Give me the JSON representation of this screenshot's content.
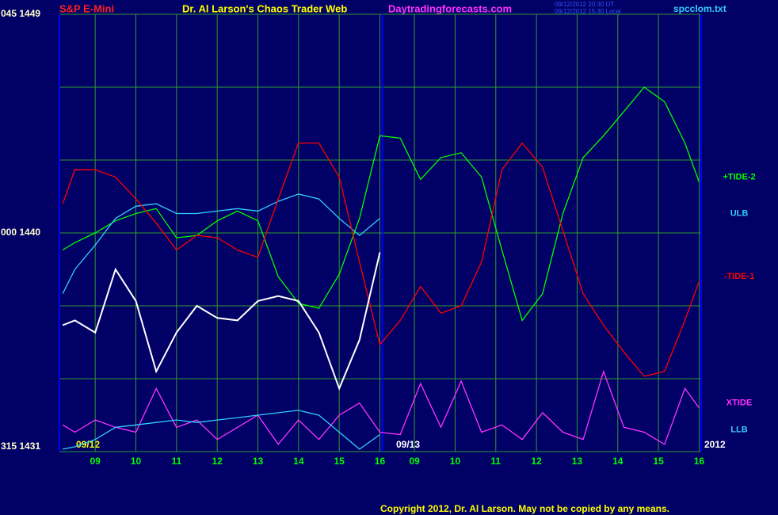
{
  "chart_data": {
    "type": "line",
    "title": "Dr. Al Larson's Chaos Trader Web",
    "symbol": "S&P E-Mini",
    "website": "Daytradingforecasts.com",
    "timestamp_ut": "09/12/2012 20:30 UT",
    "timestamp_local": "09/12/2012 15:30 Local",
    "file": "spcclom.txt",
    "date_labels": [
      "09/12",
      "09/13",
      "2012"
    ],
    "copyright": "Copyright 2012, Dr. Al Larson. May not be copied by any means.",
    "background": "#000066",
    "grid_color": "#2e9a2e",
    "grid": true,
    "xlim": [
      8.12,
      23.9
    ],
    "xticks": [
      {
        "value": 9,
        "label": "09"
      },
      10,
      11,
      12,
      13,
      14,
      15,
      16,
      {
        "value": 16.85,
        "label": "09"
      },
      {
        "value": 17.85,
        "label": "10"
      },
      {
        "value": 18.85,
        "label": "11"
      },
      {
        "value": 19.85,
        "label": "12"
      },
      {
        "value": 20.85,
        "label": "13"
      },
      {
        "value": 21.85,
        "label": "14"
      },
      {
        "value": 22.85,
        "label": "15"
      },
      {
        "value": 23.85,
        "label": "16"
      }
    ],
    "divider_x": 16.06,
    "ylim": [
      1431,
      1449
    ],
    "yticks": [
      {
        "value": 1449,
        "label": "045 1449"
      },
      {
        "value": 1440,
        "label": "000 1440"
      },
      {
        "value": 1431,
        "label": "315 1431"
      }
    ],
    "ygrid": [
      1446,
      1443,
      1437,
      1434
    ],
    "legend": "line-end",
    "x": [
      8.2,
      8.5,
      9,
      9.5,
      10,
      10.5,
      11,
      11.5,
      12,
      12.5,
      13,
      13.5,
      14,
      14.5,
      15,
      15.5,
      16,
      16.5,
      17,
      17.5,
      18,
      18.5,
      19,
      19.5,
      20,
      20.5,
      21,
      21.5,
      22,
      22.5,
      23,
      23.5,
      23.85
    ],
    "series": [
      {
        "name": "+TIDE-2",
        "color": "#00ff00",
        "values": [
          1439.3,
          1439.6,
          1440.0,
          1440.5,
          1440.8,
          1441.0,
          1439.8,
          1439.9,
          1440.5,
          1440.9,
          1440.5,
          1438.2,
          1437.1,
          1436.9,
          1438.3,
          1440.6,
          1444.0,
          1443.9,
          1442.2,
          1443.1,
          1443.3,
          1442.3,
          1439.3,
          1436.4,
          1437.5,
          1440.8,
          1443.1,
          1444.0,
          1445.0,
          1446.0,
          1445.4,
          1443.7,
          1442.1
        ]
      },
      {
        "name": "ULB",
        "color": "#33ccff",
        "values": [
          1437.5,
          1438.5,
          1439.5,
          1440.6,
          1441.1,
          1441.2,
          1440.8,
          1440.8,
          1440.9,
          1441.0,
          1440.9,
          1441.3,
          1441.6,
          1441.4,
          1440.6,
          1439.9,
          1440.6,
          null,
          null,
          null,
          null,
          null,
          null,
          null,
          null,
          null,
          null,
          null,
          null,
          null,
          null,
          null,
          null
        ]
      },
      {
        "name": "-TIDE-1",
        "color": "#ff0000",
        "values": [
          1441.2,
          1442.6,
          1442.6,
          1442.3,
          1441.4,
          1440.4,
          1439.3,
          1439.9,
          1439.8,
          1439.3,
          1439.0,
          1441.4,
          1443.7,
          1443.7,
          1442.3,
          1438.8,
          1435.4,
          1436.4,
          1437.8,
          1436.7,
          1437.0,
          1438.8,
          1442.6,
          1443.7,
          1442.7,
          1440.1,
          1437.5,
          1436.2,
          1435.1,
          1434.1,
          1434.3,
          1436.4,
          1438.0
        ]
      },
      {
        "name": "XTIDE",
        "color": "#ff33ff",
        "values": [
          1432.1,
          1431.8,
          1432.3,
          1432.0,
          1431.8,
          1433.6,
          1432.0,
          1432.3,
          1431.5,
          1432.0,
          1432.5,
          1431.3,
          1432.3,
          1431.5,
          1432.5,
          1433.0,
          1431.8,
          1431.7,
          1433.8,
          1432.0,
          1433.9,
          1431.8,
          1432.1,
          1431.5,
          1432.6,
          1431.8,
          1431.5,
          1434.3,
          1432.0,
          1431.8,
          1431.3,
          1433.6,
          1432.8
        ]
      },
      {
        "name": "LLB",
        "color": "#33ccff",
        "values": [
          1431.1,
          1431.2,
          1431.5,
          1432.0,
          1432.1,
          1432.2,
          1432.3,
          1432.2,
          1432.3,
          1432.4,
          1432.5,
          1432.6,
          1432.7,
          1432.5,
          1431.8,
          1431.1,
          1431.7,
          null,
          null,
          null,
          null,
          null,
          null,
          null,
          null,
          null,
          null,
          null,
          null,
          null,
          null,
          null,
          null
        ]
      },
      {
        "color": "#ffffff",
        "values": [
          1436.2,
          1436.4,
          1435.9,
          1438.5,
          1437.2,
          1434.3,
          1435.9,
          1437.0,
          1436.5,
          1436.4,
          1437.2,
          1437.4,
          1437.2,
          1435.9,
          1433.6,
          1435.6,
          1439.2,
          null,
          null,
          null,
          null,
          null,
          null,
          null,
          null,
          null,
          null,
          null,
          null,
          null,
          null,
          null,
          null
        ]
      }
    ]
  }
}
